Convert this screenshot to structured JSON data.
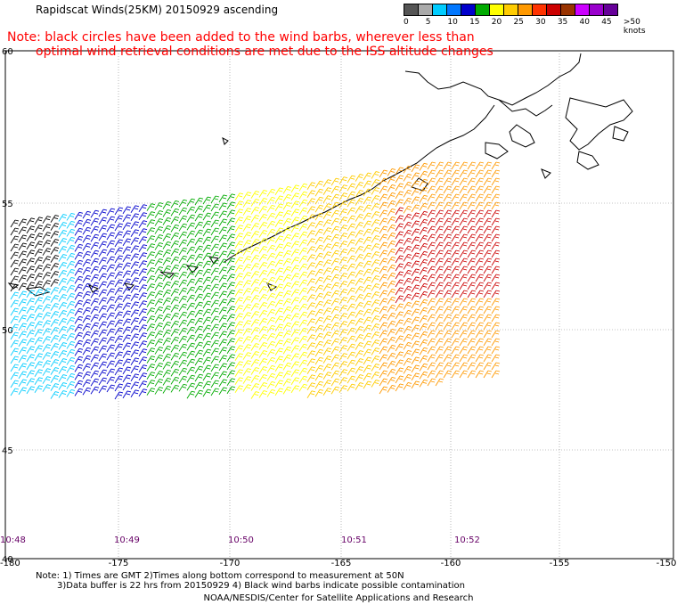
{
  "title": "Rapidscat Winds(25KM) 20150929 ascending",
  "note_line1": "Note: black circles have been added to the wind barbs, wherever less than",
  "note_line2": "optimal wind retrieval conditions are met due to the ISS altitude changes",
  "legend": {
    "labels": [
      "0",
      "5",
      "10",
      "15",
      "20",
      "25",
      "30",
      "35",
      "40",
      "45",
      ">50 knots"
    ],
    "colors": [
      "#555555",
      "#aaaaaa",
      "#00ccff",
      "#0077ff",
      "#0000cc",
      "#00aa00",
      "#ffff00",
      "#ffcc00",
      "#ff9900",
      "#ff3300",
      "#cc0000",
      "#993300",
      "#cc00ff",
      "#9900cc",
      "#660099"
    ]
  },
  "map": {
    "lat_labels": [
      "60",
      "55",
      "50",
      "45",
      "40"
    ],
    "lon_labels": [
      "-180",
      "-175",
      "-170",
      "-165",
      "-160",
      "-155",
      "-150"
    ],
    "time_labels": [
      "10:48",
      "10:49",
      "10:50",
      "10:51",
      "10:52"
    ]
  },
  "footer": {
    "line1": "Note: 1) Times are GMT 2)Times along bottom correspond to measurement at 50N",
    "line2": "3)Data buffer is 22 hrs from 20150929 4) Black wind barbs indicate possible contamination",
    "line3": "NOAA/NESDIS/Center for Satellite Applications and Research"
  }
}
